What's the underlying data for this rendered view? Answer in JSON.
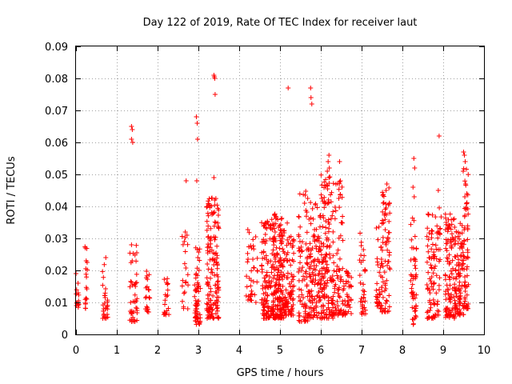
{
  "chart_data": {
    "type": "scatter",
    "title": "Day 122 of 2019, Rate Of TEC Index for receiver laut",
    "xlabel": "GPS time / hours",
    "ylabel": "ROTI / TECUs",
    "xlim": [
      0,
      10
    ],
    "ylim": [
      0,
      0.09
    ],
    "grid": true,
    "marker": "+",
    "x_ticks": [
      "0",
      "1",
      "2",
      "3",
      "4",
      "5",
      "6",
      "7",
      "8",
      "9",
      "10"
    ],
    "y_ticks": [
      "0",
      "0.01",
      "0.02",
      "0.03",
      "0.04",
      "0.05",
      "0.06",
      "0.07",
      "0.08",
      "0.09"
    ],
    "series": [
      {
        "name": "ROTI",
        "color": "#ff0000",
        "clusters": [
          {
            "x0": 0.0,
            "x1": 0.08,
            "y0": 0.008,
            "y1": 0.016,
            "n": 12
          },
          {
            "x0": 0.22,
            "x1": 0.28,
            "y0": 0.008,
            "y1": 0.028,
            "n": 16
          },
          {
            "x0": 0.65,
            "x1": 0.78,
            "y0": 0.005,
            "y1": 0.024,
            "n": 30
          },
          {
            "x0": 1.32,
            "x1": 1.5,
            "y0": 0.004,
            "y1": 0.028,
            "n": 45
          },
          {
            "x0": 1.7,
            "x1": 1.82,
            "y0": 0.007,
            "y1": 0.021,
            "n": 20
          },
          {
            "x0": 2.15,
            "x1": 2.28,
            "y0": 0.006,
            "y1": 0.018,
            "n": 20
          },
          {
            "x0": 2.6,
            "x1": 2.75,
            "y0": 0.008,
            "y1": 0.035,
            "n": 20
          },
          {
            "x0": 2.9,
            "x1": 3.05,
            "y0": 0.003,
            "y1": 0.03,
            "n": 60
          },
          {
            "x0": 3.2,
            "x1": 3.5,
            "y0": 0.005,
            "y1": 0.043,
            "n": 150
          },
          {
            "x0": 4.15,
            "x1": 4.45,
            "y0": 0.01,
            "y1": 0.034,
            "n": 40
          },
          {
            "x0": 4.55,
            "x1": 4.85,
            "y0": 0.005,
            "y1": 0.036,
            "n": 140
          },
          {
            "x0": 4.85,
            "x1": 5.1,
            "y0": 0.005,
            "y1": 0.039,
            "n": 160
          },
          {
            "x0": 5.1,
            "x1": 5.35,
            "y0": 0.006,
            "y1": 0.035,
            "n": 90
          },
          {
            "x0": 5.45,
            "x1": 5.7,
            "y0": 0.004,
            "y1": 0.045,
            "n": 80
          },
          {
            "x0": 5.7,
            "x1": 6.0,
            "y0": 0.005,
            "y1": 0.042,
            "n": 120
          },
          {
            "x0": 6.0,
            "x1": 6.3,
            "y0": 0.005,
            "y1": 0.05,
            "n": 140
          },
          {
            "x0": 6.3,
            "x1": 6.55,
            "y0": 0.006,
            "y1": 0.048,
            "n": 80
          },
          {
            "x0": 6.55,
            "x1": 6.75,
            "y0": 0.006,
            "y1": 0.02,
            "n": 40
          },
          {
            "x0": 6.95,
            "x1": 7.1,
            "y0": 0.006,
            "y1": 0.032,
            "n": 35
          },
          {
            "x0": 7.35,
            "x1": 7.5,
            "y0": 0.008,
            "y1": 0.034,
            "n": 40
          },
          {
            "x0": 7.5,
            "x1": 7.7,
            "y0": 0.007,
            "y1": 0.046,
            "n": 70
          },
          {
            "x0": 8.2,
            "x1": 8.35,
            "y0": 0.003,
            "y1": 0.038,
            "n": 50
          },
          {
            "x0": 8.6,
            "x1": 8.8,
            "y0": 0.005,
            "y1": 0.038,
            "n": 70
          },
          {
            "x0": 8.8,
            "x1": 8.95,
            "y0": 0.006,
            "y1": 0.04,
            "n": 35
          },
          {
            "x0": 9.05,
            "x1": 9.3,
            "y0": 0.005,
            "y1": 0.038,
            "n": 110
          },
          {
            "x0": 9.3,
            "x1": 9.5,
            "y0": 0.006,
            "y1": 0.035,
            "n": 90
          },
          {
            "x0": 9.5,
            "x1": 9.62,
            "y0": 0.008,
            "y1": 0.052,
            "n": 60
          }
        ],
        "points": [
          [
            0.0,
            0.019
          ],
          [
            0.05,
            0.016
          ],
          [
            0.23,
            0.027
          ],
          [
            0.25,
            0.023
          ],
          [
            0.73,
            0.024
          ],
          [
            1.36,
            0.065
          ],
          [
            1.38,
            0.064
          ],
          [
            1.36,
            0.061
          ],
          [
            1.39,
            0.06
          ],
          [
            1.36,
            0.028
          ],
          [
            2.7,
            0.048
          ],
          [
            2.68,
            0.032
          ],
          [
            2.72,
            0.031
          ],
          [
            2.95,
            0.068
          ],
          [
            2.97,
            0.066
          ],
          [
            2.98,
            0.061
          ],
          [
            2.96,
            0.048
          ],
          [
            3.38,
            0.081
          ],
          [
            3.39,
            0.0805
          ],
          [
            3.4,
            0.08
          ],
          [
            3.41,
            0.075
          ],
          [
            3.38,
            0.049
          ],
          [
            3.4,
            0.042
          ],
          [
            5.2,
            0.077
          ],
          [
            5.75,
            0.077
          ],
          [
            5.76,
            0.074
          ],
          [
            5.78,
            0.072
          ],
          [
            6.2,
            0.056
          ],
          [
            6.18,
            0.054
          ],
          [
            6.21,
            0.052
          ],
          [
            6.16,
            0.051
          ],
          [
            6.2,
            0.049
          ],
          [
            6.46,
            0.054
          ],
          [
            6.48,
            0.048
          ],
          [
            7.62,
            0.047
          ],
          [
            7.6,
            0.045
          ],
          [
            8.28,
            0.055
          ],
          [
            8.3,
            0.052
          ],
          [
            8.26,
            0.046
          ],
          [
            8.29,
            0.043
          ],
          [
            8.9,
            0.062
          ],
          [
            8.88,
            0.045
          ],
          [
            9.5,
            0.057
          ],
          [
            9.52,
            0.056
          ],
          [
            9.54,
            0.054
          ],
          [
            9.49,
            0.051
          ],
          [
            9.55,
            0.047
          ],
          [
            9.58,
            0.044
          ],
          [
            9.53,
            0.043
          ],
          [
            9.56,
            0.039
          ]
        ]
      }
    ]
  }
}
